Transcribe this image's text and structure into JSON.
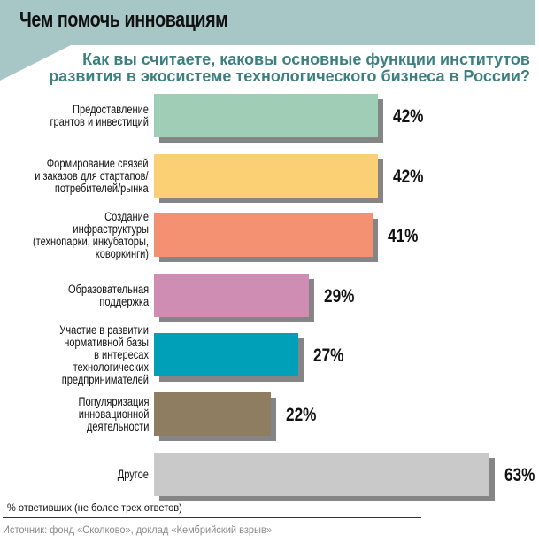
{
  "header": {
    "title": "Чем помочь инновациям",
    "subtitle_line1": "Как вы считаете, каковы основные функции институтов",
    "subtitle_line2": "развития в экосистеме технологического бизнеса в России?"
  },
  "colors": {
    "banner": "#a6c7c6",
    "subtitle": "#3d7f7f",
    "shadow": "#858585"
  },
  "chart_data": {
    "type": "bar",
    "orientation": "horizontal",
    "title": "Чем помочь инновациям",
    "subtitle": "Как вы считаете, каковы основные функции институтов развития в экосистеме технологического бизнеса в России?",
    "categories": [
      "Предоставление грантов и инвестиций",
      "Формирование связей и заказов для стартапов/потребителей/рынка",
      "Создание инфраструктуры (технопарки, инкубаторы, коворкинги)",
      "Образовательная поддержка",
      "Участие в развитии нормативной базы в интересах технологических предпринимателей",
      "Популяризация инновационной деятельности",
      "Другое"
    ],
    "values": [
      42,
      42,
      41,
      29,
      27,
      22,
      63
    ],
    "unit": "%",
    "xlabel": "% ответивших (не более трех ответов)",
    "ylabel": "",
    "xlim": [
      0,
      70
    ],
    "grid": false,
    "legend": "none",
    "source": "Источник: фонд «Сколково», доклад «Кембрийский взрыв»"
  },
  "bars": [
    {
      "label": "Предоставление\nгрантов и инвестиций",
      "value": 42,
      "pct": "42%",
      "color": "#9fcdb5"
    },
    {
      "label": "Формирование связей\nи заказов для стартапов/\nпотребителей/рынка",
      "value": 42,
      "pct": "42%",
      "color": "#fbcf74"
    },
    {
      "label": "Создание инфраструктуры\n(технопарки, инкубаторы,\nковоркинги)",
      "value": 41,
      "pct": "41%",
      "color": "#f39172"
    },
    {
      "label": "Образовательная\nподдержка",
      "value": 29,
      "pct": "29%",
      "color": "#cf8db3"
    },
    {
      "label": "Участие в развитии\nнормативной базы\nв интересах технологических\nпредпринимателей",
      "value": 27,
      "pct": "27%",
      "color": "#00a0b8"
    },
    {
      "label": "Популяризация\nинновационной\nдеятельности",
      "value": 22,
      "pct": "22%",
      "color": "#8f7d62"
    },
    {
      "label": "Другое",
      "value": 63,
      "pct": "63%",
      "color": "#c9c9c9"
    }
  ],
  "footer": {
    "note": "% ответивших (не более трех ответов)",
    "source": "Источник: фонд «Сколково», доклад «Кембрийский взрыв»"
  }
}
